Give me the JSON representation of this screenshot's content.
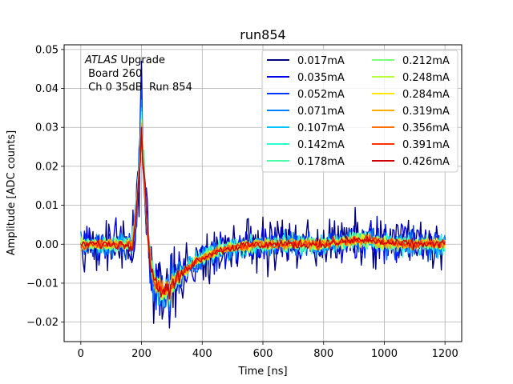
{
  "chart_data": {
    "type": "line",
    "title": "run854",
    "xlabel": "Time [ns]",
    "ylabel": "Amplitude [ADC counts]",
    "xlim": [
      -55,
      1255
    ],
    "ylim": [
      -0.025,
      0.0512
    ],
    "xticks": [
      0,
      200,
      400,
      600,
      800,
      1000,
      1200
    ],
    "xtick_labels": [
      "0",
      "200",
      "400",
      "600",
      "800",
      "1000",
      "1200"
    ],
    "yticks": [
      -0.02,
      -0.01,
      0.0,
      0.01,
      0.02,
      0.03,
      0.04,
      0.05
    ],
    "ytick_labels": [
      "−0.02",
      "−0.01",
      "0.00",
      "0.01",
      "0.02",
      "0.03",
      "0.04",
      "0.05"
    ],
    "grid": true,
    "legend_position": "top-right",
    "legend_columns": 2,
    "annotation": {
      "line1_italic": "ATLAS",
      "line1_rest": " Upgrade",
      "line2": " Board 260",
      "line3": " Ch 0 35dB  Run 854"
    },
    "sampling": {
      "start": 0,
      "end": 1200,
      "step": 4
    },
    "pulse_shape": [
      [
        0,
        0.0
      ],
      [
        170,
        0.0
      ],
      [
        178,
        0.004
      ],
      [
        186,
        0.012
      ],
      [
        194,
        0.02
      ],
      [
        200,
        0.0245
      ],
      [
        206,
        0.0215
      ],
      [
        214,
        0.011
      ],
      [
        222,
        0.001
      ],
      [
        232,
        -0.006
      ],
      [
        246,
        -0.01
      ],
      [
        262,
        -0.0118
      ],
      [
        280,
        -0.0118
      ],
      [
        300,
        -0.0104
      ],
      [
        330,
        -0.0078
      ],
      [
        360,
        -0.0055
      ],
      [
        400,
        -0.0033
      ],
      [
        450,
        -0.0017
      ],
      [
        500,
        -0.0008
      ],
      [
        560,
        -0.0002
      ],
      [
        640,
        0.0
      ],
      [
        780,
        0.0
      ],
      [
        860,
        0.0005
      ],
      [
        900,
        0.0011
      ],
      [
        940,
        0.001
      ],
      [
        1000,
        0.0004
      ],
      [
        1060,
        0.0001
      ],
      [
        1200,
        0.0
      ]
    ],
    "series": [
      {
        "name": "0.017mA",
        "color": "#00007f",
        "noise": 0.0032,
        "spike": 0.047,
        "dip": -0.0215
      },
      {
        "name": "0.035mA",
        "color": "#0000e8",
        "noise": 0.0024,
        "spike": 0.043,
        "dip": -0.0195
      },
      {
        "name": "0.052mA",
        "color": "#0038ff",
        "noise": 0.0019,
        "spike": 0.04,
        "dip": -0.018
      },
      {
        "name": "0.071mA",
        "color": "#0080ff",
        "noise": 0.0016,
        "spike": 0.037,
        "dip": -0.017
      },
      {
        "name": "0.107mA",
        "color": "#00c4ff",
        "noise": 0.0013,
        "spike": 0.035,
        "dip": -0.016
      },
      {
        "name": "0.142mA",
        "color": "#27ffcf",
        "noise": 0.0011,
        "spike": 0.034,
        "dip": -0.0155
      },
      {
        "name": "0.178mA",
        "color": "#4dffaa",
        "noise": 0.001,
        "spike": 0.033,
        "dip": -0.015
      },
      {
        "name": "0.212mA",
        "color": "#7cff79",
        "noise": 0.0009,
        "spike": 0.032,
        "dip": -0.0148
      },
      {
        "name": "0.248mA",
        "color": "#b8ff3b",
        "noise": 0.0008,
        "spike": 0.032,
        "dip": -0.0145
      },
      {
        "name": "0.284mA",
        "color": "#ffe600",
        "noise": 0.0007,
        "spike": 0.031,
        "dip": -0.0143
      },
      {
        "name": "0.319mA",
        "color": "#ffaa00",
        "noise": 0.0007,
        "spike": 0.031,
        "dip": -0.0142
      },
      {
        "name": "0.356mA",
        "color": "#ff6f00",
        "noise": 0.0006,
        "spike": 0.03,
        "dip": -0.014
      },
      {
        "name": "0.391mA",
        "color": "#ff2f00",
        "noise": 0.0006,
        "spike": 0.03,
        "dip": -0.014
      },
      {
        "name": "0.426mA",
        "color": "#cc0000",
        "noise": 0.0006,
        "spike": 0.03,
        "dip": -0.014
      }
    ]
  }
}
